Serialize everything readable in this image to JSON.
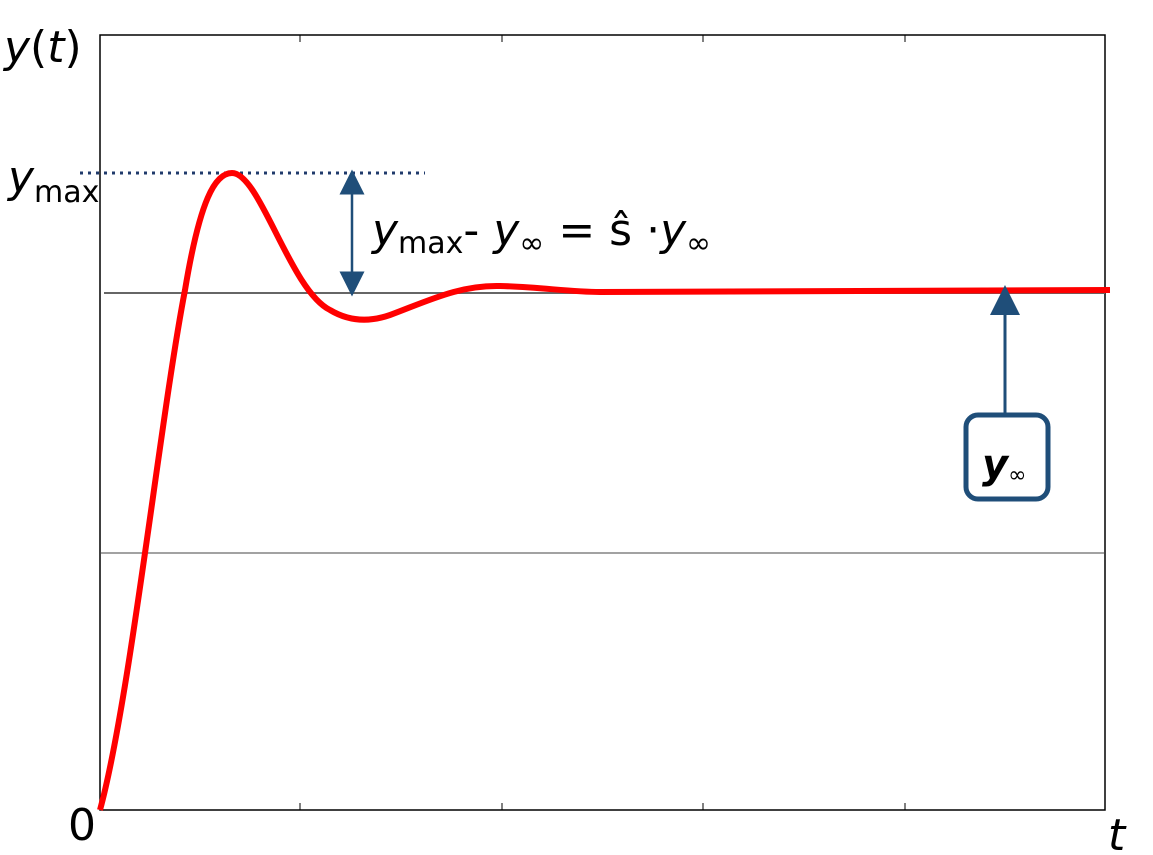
{
  "axes": {
    "y_label": {
      "base": "y",
      "open": "(",
      "arg": "t",
      "close": ")"
    },
    "x_label": "t",
    "origin": "0"
  },
  "annotations": {
    "y_max": {
      "base": "y",
      "sub": "max"
    },
    "formula": {
      "parts": [
        "y",
        "max",
        "- ",
        "y",
        "∞",
        " = ŝ ·",
        "y",
        "∞"
      ]
    },
    "y_inf_box": {
      "base": "y",
      "sub": "∞"
    }
  }
}
